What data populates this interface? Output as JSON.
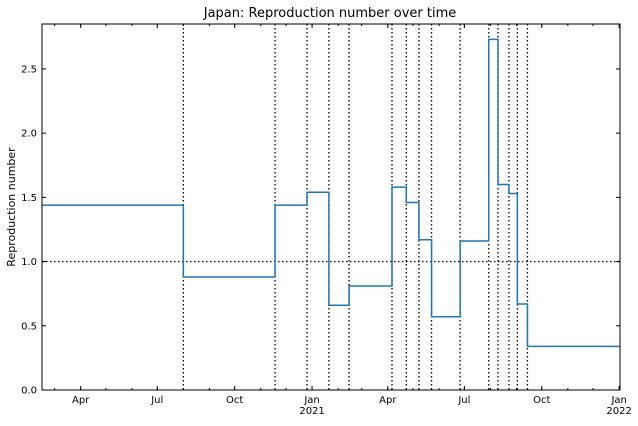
{
  "chart_data": {
    "type": "line",
    "title": "Japan: Reproduction number over time",
    "xlabel": "",
    "ylabel": "Reproduction number",
    "xlim": [
      "2020-02-15",
      "2022-01-02"
    ],
    "ylim": [
      0.0,
      2.85
    ],
    "x_ticks": [
      {
        "date": "2020-04-01",
        "label": "Apr",
        "sublabel": ""
      },
      {
        "date": "2020-07-01",
        "label": "Jul",
        "sublabel": ""
      },
      {
        "date": "2020-10-01",
        "label": "Oct",
        "sublabel": ""
      },
      {
        "date": "2021-01-01",
        "label": "Jan",
        "sublabel": "2021"
      },
      {
        "date": "2021-04-01",
        "label": "Apr",
        "sublabel": ""
      },
      {
        "date": "2021-07-01",
        "label": "Jul",
        "sublabel": ""
      },
      {
        "date": "2021-10-01",
        "label": "Oct",
        "sublabel": ""
      },
      {
        "date": "2022-01-01",
        "label": "Jan",
        "sublabel": "2022"
      }
    ],
    "y_ticks": [
      {
        "value": 0.0,
        "label": "0.0"
      },
      {
        "value": 0.5,
        "label": "0.5"
      },
      {
        "value": 1.0,
        "label": "1.0"
      },
      {
        "value": 1.5,
        "label": "1.5"
      },
      {
        "value": 2.0,
        "label": "2.0"
      },
      {
        "value": 2.5,
        "label": "2.5"
      }
    ],
    "reference_line": {
      "y": 1.0,
      "style": "dotted"
    },
    "changepoints": [
      "2020-08-01",
      "2020-11-18",
      "2020-12-26",
      "2021-01-21",
      "2021-02-14",
      "2021-04-06",
      "2021-04-23",
      "2021-05-08",
      "2021-05-23",
      "2021-06-26",
      "2021-07-30",
      "2021-08-10",
      "2021-08-23",
      "2021-09-02",
      "2021-09-14"
    ],
    "series": [
      {
        "name": "",
        "color": "#1f77b4",
        "segments": [
          {
            "start": "2020-02-15",
            "end": "2020-08-01",
            "value": 1.44
          },
          {
            "start": "2020-08-01",
            "end": "2020-11-18",
            "value": 0.88
          },
          {
            "start": "2020-11-18",
            "end": "2020-12-26",
            "value": 1.44
          },
          {
            "start": "2020-12-26",
            "end": "2021-01-21",
            "value": 1.54
          },
          {
            "start": "2021-01-21",
            "end": "2021-02-14",
            "value": 0.66
          },
          {
            "start": "2021-02-14",
            "end": "2021-04-06",
            "value": 0.81
          },
          {
            "start": "2021-04-06",
            "end": "2021-04-23",
            "value": 1.58
          },
          {
            "start": "2021-04-23",
            "end": "2021-05-08",
            "value": 1.46
          },
          {
            "start": "2021-05-08",
            "end": "2021-05-23",
            "value": 1.17
          },
          {
            "start": "2021-05-23",
            "end": "2021-06-26",
            "value": 0.57
          },
          {
            "start": "2021-06-26",
            "end": "2021-07-30",
            "value": 1.16
          },
          {
            "start": "2021-07-30",
            "end": "2021-08-10",
            "value": 2.73
          },
          {
            "start": "2021-08-10",
            "end": "2021-08-23",
            "value": 1.6
          },
          {
            "start": "2021-08-23",
            "end": "2021-09-02",
            "value": 1.53
          },
          {
            "start": "2021-09-02",
            "end": "2021-09-14",
            "value": 0.67
          },
          {
            "start": "2021-09-14",
            "end": "2022-01-02",
            "value": 0.34
          }
        ]
      }
    ],
    "grid": false,
    "legend": "none"
  }
}
